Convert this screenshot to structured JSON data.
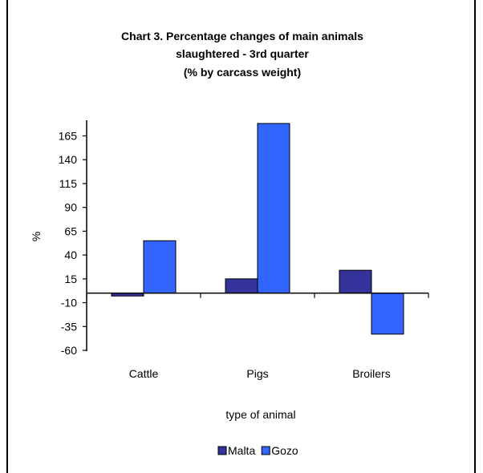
{
  "chart_data": {
    "type": "bar",
    "title_lines": [
      "Chart 3.  Percentage changes of main animals",
      "slaughtered - 3rd quarter",
      "(% by carcass weight)"
    ],
    "xlabel": "type of animal",
    "ylabel": "%",
    "categories": [
      "Cattle",
      "Pigs",
      "Broilers"
    ],
    "series": [
      {
        "name": "Malta",
        "values": [
          -3,
          15,
          24
        ],
        "color": "#333399"
      },
      {
        "name": "Gozo",
        "values": [
          55,
          178,
          -43
        ],
        "color": "#3366ff"
      }
    ],
    "yticks": [
      165,
      140,
      115,
      90,
      65,
      40,
      15,
      -10,
      -35,
      -60
    ],
    "ylim": [
      -60,
      180
    ],
    "grid": false,
    "legend_position": "bottom"
  }
}
